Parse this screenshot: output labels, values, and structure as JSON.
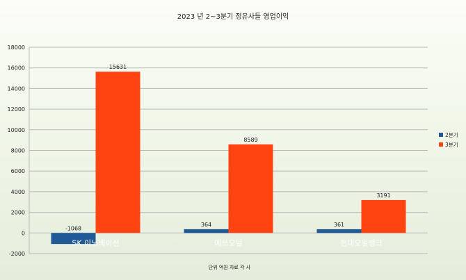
{
  "chart_data": {
    "type": "bar",
    "title": "2023 년  2~3분기 정유사들 영업이익",
    "footnote": "단위 억원   자료 각 사",
    "categories": [
      "SK 이노베이션",
      "에쓰오일",
      "현대오일뱅크"
    ],
    "series": [
      {
        "name": "2분기",
        "values": [
          -1068,
          364,
          361
        ],
        "color": "#1f5a96"
      },
      {
        "name": "3분기",
        "values": [
          15631,
          8589,
          3191
        ],
        "color": "#ff4412"
      }
    ],
    "ylim": [
      -2000,
      18000
    ],
    "yticks": [
      -2000,
      0,
      2000,
      4000,
      6000,
      8000,
      10000,
      12000,
      14000,
      16000,
      18000
    ],
    "grid": true,
    "legend": "right"
  }
}
